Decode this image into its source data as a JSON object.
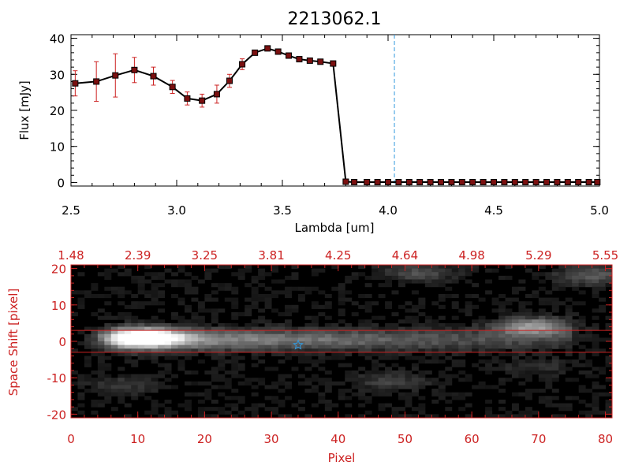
{
  "colors": {
    "accent_red": "#cc2222",
    "marker_fill": "#7a1010",
    "dashed_line": "#3399dd",
    "star": "#3399dd",
    "axis": "#000000",
    "background": "#ffffff"
  },
  "chart_data": [
    {
      "type": "line",
      "title": "2213062.1",
      "xlabel": "Lambda [um]",
      "ylabel": "Flux [mJy]",
      "xlim": [
        2.5,
        5.0
      ],
      "ylim": [
        -1,
        41
      ],
      "x_ticks": [
        "2.5",
        "3.0",
        "3.5",
        "4.0",
        "4.5",
        "5.0"
      ],
      "y_ticks": [
        "0",
        "10",
        "20",
        "30",
        "40"
      ],
      "vertical_marker_x": 4.03,
      "series": [
        {
          "x": [
            2.52,
            2.62,
            2.71,
            2.8,
            2.89,
            2.98,
            3.05,
            3.12,
            3.19,
            3.25,
            3.31,
            3.37,
            3.43,
            3.48,
            3.53,
            3.58,
            3.63,
            3.68,
            3.74,
            3.8,
            3.84,
            3.9,
            3.95,
            4.0,
            4.05,
            4.1,
            4.15,
            4.2,
            4.25,
            4.3,
            4.35,
            4.4,
            4.45,
            4.5,
            4.55,
            4.6,
            4.65,
            4.7,
            4.75,
            4.8,
            4.85,
            4.9,
            4.95,
            4.99
          ],
          "y": [
            27.5,
            28,
            29.7,
            31.2,
            29.5,
            26.5,
            23.3,
            22.7,
            24.5,
            28.2,
            32.8,
            36,
            37.2,
            36.3,
            35.2,
            34.2,
            33.8,
            33.5,
            33.0,
            0.2,
            0.1,
            0.1,
            0.1,
            0.1,
            0.1,
            0.1,
            0.1,
            0.1,
            0.1,
            0.1,
            0.1,
            0.1,
            0.1,
            0.1,
            0.1,
            0.1,
            0.1,
            0.1,
            0.1,
            0.1,
            0.1,
            0.1,
            0.1,
            0.1
          ],
          "errors": [
            3.5,
            5.5,
            6,
            3.5,
            2.5,
            1.8,
            1.8,
            1.8,
            2.5,
            1.8,
            1.5,
            0.5,
            0.5,
            0.5,
            0.5,
            0.5,
            0.5,
            0.5,
            0.5,
            0,
            0,
            0,
            0,
            0,
            0,
            0,
            0,
            0,
            0,
            0,
            0,
            0,
            0,
            0,
            0,
            0,
            0,
            0,
            0,
            0,
            0,
            0,
            0,
            0
          ]
        }
      ]
    },
    {
      "type": "heatmap",
      "xlabel": "Pixel",
      "ylabel": "Space Shift [pixel]",
      "xlim": [
        0,
        81
      ],
      "ylim": [
        -21,
        21
      ],
      "x_ticks": [
        "0",
        "10",
        "20",
        "30",
        "40",
        "50",
        "60",
        "70",
        "80"
      ],
      "y_ticks": [
        "-20",
        "-10",
        "0",
        "10",
        "20"
      ],
      "top_ticks": [
        "1.48",
        "2.39",
        "3.25",
        "3.81",
        "4.25",
        "4.64",
        "4.98",
        "5.29",
        "5.55"
      ],
      "aperture_y": [
        3,
        -3
      ],
      "star_position": [
        34,
        -1
      ],
      "blobs": [
        {
          "x": 11,
          "y": 1,
          "intensity": 1.0
        },
        {
          "x": 69,
          "y": 4,
          "intensity": 0.55
        },
        {
          "x": 78,
          "y": 18,
          "intensity": 0.3
        },
        {
          "x": 52,
          "y": 19,
          "intensity": 0.25
        },
        {
          "x": 48,
          "y": -11,
          "intensity": 0.18
        },
        {
          "x": 8,
          "y": -12,
          "intensity": 0.15
        },
        {
          "x": 70,
          "y": -7,
          "intensity": 0.12
        }
      ]
    }
  ]
}
